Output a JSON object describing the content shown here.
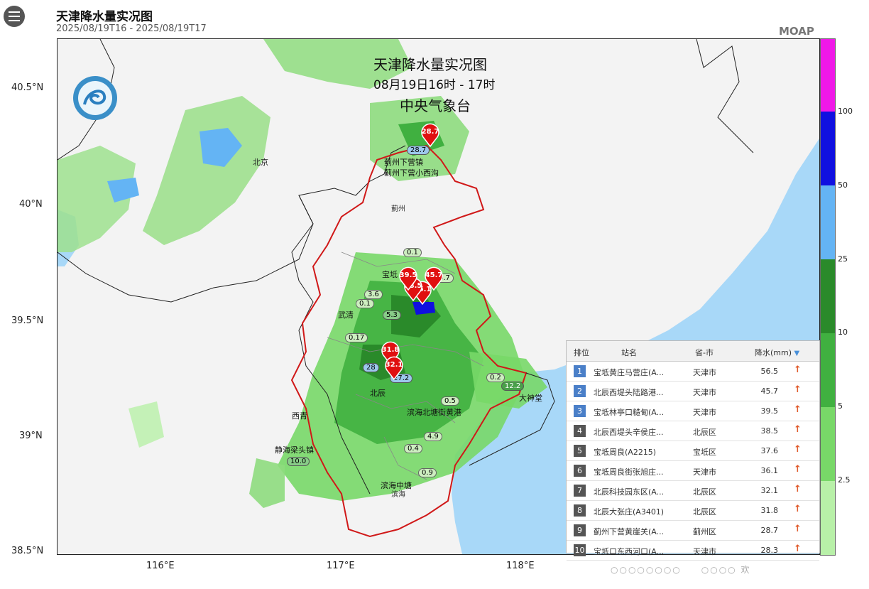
{
  "header": {
    "title": "天津降水量实况图",
    "time_range": "2025/08/19T16  -  2025/08/19T17",
    "brand": "MOAP"
  },
  "map": {
    "overlay_title": "天津降水量实况图",
    "overlay_subtitle": "08月19日16时 - 17时",
    "overlay_org": "中央气象台",
    "place_labels": {
      "beijing": "北京",
      "jizhou": "蓟州",
      "binhai": "滨海"
    },
    "lat_labels": [
      "40.5°N",
      "40°N",
      "39.5°N",
      "39°N",
      "38.5°N"
    ],
    "lon_labels": [
      "116°E",
      "117°E",
      "118°E"
    ],
    "markers": [
      {
        "value": "28.7"
      },
      {
        "value": "36.1"
      },
      {
        "value": "31.8"
      },
      {
        "value": "32.1"
      },
      {
        "value": "38.5"
      },
      {
        "value": "45.7"
      },
      {
        "value": "39.5"
      }
    ],
    "station_values": [
      "28.7",
      "0.1",
      "0.7",
      "3.6",
      "0.1",
      "5.3",
      "0.17",
      "28",
      "27.2",
      "0.5",
      "4.9",
      "0.4",
      "0.9",
      "12.2",
      "10.0",
      "0.2"
    ],
    "station_names": [
      "蓟州下营镇",
      "蓟州下营小西沟",
      "宝坻",
      "武清",
      "北辰",
      "滨海北塘街黄港",
      "静海梁头镇",
      "滨海中塘",
      "西青",
      "大神堂"
    ],
    "land_color": "#f3f3f3",
    "sea_color": "#a8d8f8"
  },
  "legend": {
    "ticks": [
      "100",
      "50",
      "25",
      "10",
      "5",
      "2.5"
    ],
    "colors": [
      "#b8f0a8",
      "#78d868",
      "#40b040",
      "#2a8a2a",
      "#64b4f4",
      "#1010e0",
      "#f018e8"
    ]
  },
  "ranking": {
    "headers": {
      "rank": "排位",
      "station": "站名",
      "region": "省-市",
      "precip": "降水(mm)"
    },
    "rows": [
      {
        "rank": "1",
        "station": "宝坻黄庄马营庄(A...",
        "region": "天津市",
        "value": "56.5"
      },
      {
        "rank": "2",
        "station": "北辰西堤头陆路港...",
        "region": "天津市",
        "value": "45.7"
      },
      {
        "rank": "3",
        "station": "宝坻林亭口糙甸(A...",
        "region": "天津市",
        "value": "39.5"
      },
      {
        "rank": "4",
        "station": "北辰西堤头辛侯庄...",
        "region": "北辰区",
        "value": "38.5"
      },
      {
        "rank": "5",
        "station": "宝坻周良(A2215)",
        "region": "宝坻区",
        "value": "37.6"
      },
      {
        "rank": "6",
        "station": "宝坻周良街张旭庄...",
        "region": "天津市",
        "value": "36.1"
      },
      {
        "rank": "7",
        "station": "北辰科技园东区(A...",
        "region": "北辰区",
        "value": "32.1"
      },
      {
        "rank": "8",
        "station": "北辰大张庄(A3401)",
        "region": "北辰区",
        "value": "31.8"
      },
      {
        "rank": "9",
        "station": "蓟州下营黄崖关(A...",
        "region": "蓟州区",
        "value": "28.7"
      },
      {
        "rank": "10",
        "station": "宝坻口东西河口(A...",
        "region": "天津市",
        "value": "28.3"
      }
    ]
  },
  "watermark": "欢"
}
